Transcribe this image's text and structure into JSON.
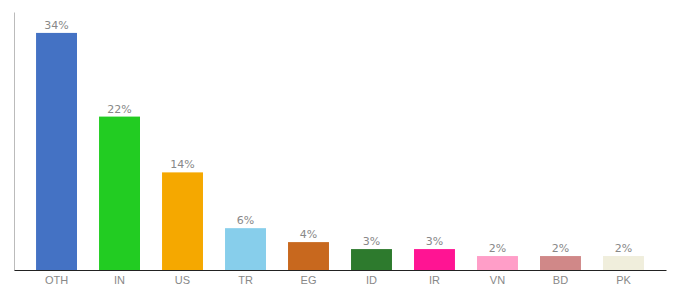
{
  "chart_data": {
    "type": "bar",
    "categories": [
      "OTH",
      "IN",
      "US",
      "TR",
      "EG",
      "ID",
      "IR",
      "VN",
      "BD",
      "PK"
    ],
    "values": [
      34,
      22,
      14,
      6,
      4,
      3,
      3,
      2,
      2,
      2
    ],
    "value_labels": [
      "34%",
      "22%",
      "14%",
      "6%",
      "4%",
      "3%",
      "3%",
      "2%",
      "2%",
      "2%"
    ],
    "colors": [
      "#4472c4",
      "#22cc22",
      "#f5a800",
      "#87ceeb",
      "#c8681e",
      "#2d7a2d",
      "#ff1493",
      "#ff9ec8",
      "#d08888",
      "#f0eedc"
    ],
    "ylim": [
      0,
      37
    ],
    "data_labels": true,
    "tick_labels": "x",
    "grid": false
  }
}
